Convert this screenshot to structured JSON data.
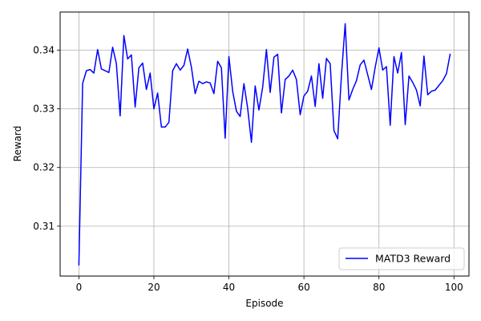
{
  "chart_data": {
    "type": "line",
    "title": "",
    "xlabel": "Episode",
    "ylabel": "Reward",
    "xlim": [
      -5,
      104
    ],
    "ylim": [
      0.3015,
      0.3465
    ],
    "x_ticks": [
      0,
      20,
      40,
      60,
      80,
      100
    ],
    "y_ticks": [
      0.31,
      0.32,
      0.33,
      0.34
    ],
    "x_tick_labels": [
      "0",
      "20",
      "40",
      "60",
      "80",
      "100"
    ],
    "y_tick_labels": [
      "0.31",
      "0.32",
      "0.33",
      "0.34"
    ],
    "grid": true,
    "legend_position": "lower-right",
    "series": [
      {
        "name": "MATD3 Reward",
        "color": "#0000ff",
        "x": [
          0,
          1,
          2,
          3,
          4,
          5,
          6,
          7,
          8,
          9,
          10,
          11,
          12,
          13,
          14,
          15,
          16,
          17,
          18,
          19,
          20,
          21,
          22,
          23,
          24,
          25,
          26,
          27,
          28,
          29,
          30,
          31,
          32,
          33,
          34,
          35,
          36,
          37,
          38,
          39,
          40,
          41,
          42,
          43,
          44,
          45,
          46,
          47,
          48,
          49,
          50,
          51,
          52,
          53,
          54,
          55,
          56,
          57,
          58,
          59,
          60,
          61,
          62,
          63,
          64,
          65,
          66,
          67,
          68,
          69,
          70,
          71,
          72,
          73,
          74,
          75,
          76,
          77,
          78,
          79,
          80,
          81,
          82,
          83,
          84,
          85,
          86,
          87,
          88,
          89,
          90,
          91,
          92,
          93,
          94,
          95,
          96,
          97,
          98,
          99
        ],
        "y": [
          0.3033,
          0.3343,
          0.3365,
          0.3367,
          0.3361,
          0.3401,
          0.3368,
          0.3365,
          0.3362,
          0.3405,
          0.3377,
          0.3288,
          0.3425,
          0.3385,
          0.3392,
          0.3303,
          0.337,
          0.3378,
          0.3333,
          0.3361,
          0.33,
          0.3327,
          0.3269,
          0.3269,
          0.3277,
          0.3365,
          0.3377,
          0.3366,
          0.3374,
          0.3402,
          0.3371,
          0.3326,
          0.3347,
          0.3343,
          0.3346,
          0.3344,
          0.3326,
          0.3381,
          0.337,
          0.325,
          0.3389,
          0.333,
          0.3296,
          0.3287,
          0.3343,
          0.3301,
          0.3243,
          0.3339,
          0.3298,
          0.3337,
          0.3401,
          0.3328,
          0.3388,
          0.3393,
          0.3293,
          0.335,
          0.3356,
          0.3366,
          0.335,
          0.329,
          0.3322,
          0.333,
          0.3356,
          0.3304,
          0.3377,
          0.3318,
          0.3386,
          0.3377,
          0.3263,
          0.3249,
          0.3357,
          0.3445,
          0.3315,
          0.3333,
          0.3348,
          0.3375,
          0.3383,
          0.3358,
          0.3333,
          0.3371,
          0.3404,
          0.3366,
          0.3372,
          0.3272,
          0.3389,
          0.3361,
          0.3396,
          0.3273,
          0.3356,
          0.3345,
          0.3332,
          0.3305,
          0.339,
          0.3324,
          0.333,
          0.3332,
          0.334,
          0.3348,
          0.336,
          0.3394
        ]
      }
    ]
  }
}
